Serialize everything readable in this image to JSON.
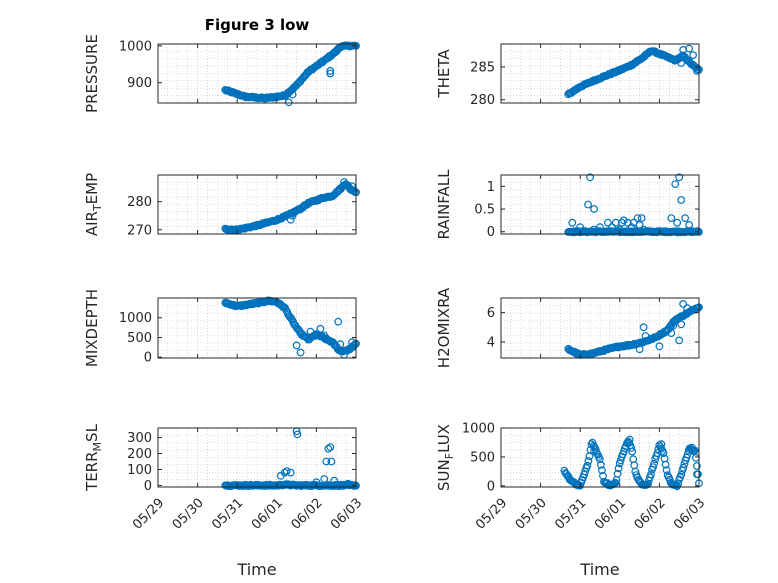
{
  "colors": {
    "marker": "#0072BD",
    "axis": "#262626",
    "grid": "#bfbfbf"
  },
  "chart_data": [
    {
      "type": "scatter",
      "title": "Figure 3 low",
      "ylabel": "PRESSURE",
      "ylabel_sub": "",
      "ylabel_suffix": "",
      "xlabel": "",
      "ylim": [
        845,
        1005
      ],
      "yticks": [
        900,
        1000
      ],
      "ytick_labels": [
        "900",
        "1000"
      ],
      "xlim": [
        0,
        5
      ],
      "grid": "on",
      "trend": [
        [
          1.7,
          880
        ],
        [
          2.2,
          862
        ],
        [
          2.7,
          858
        ],
        [
          3.0,
          862
        ],
        [
          3.2,
          865
        ],
        [
          3.5,
          893
        ],
        [
          3.8,
          930
        ],
        [
          4.2,
          960
        ],
        [
          4.5,
          985
        ],
        [
          4.6,
          998
        ],
        [
          4.8,
          1000
        ],
        [
          5.0,
          1000
        ]
      ],
      "extras": [
        [
          3.3,
          847
        ],
        [
          3.4,
          868
        ],
        [
          4.35,
          925
        ],
        [
          4.35,
          932
        ],
        [
          4.15,
          958
        ]
      ]
    },
    {
      "type": "scatter",
      "title": "",
      "ylabel": "THETA",
      "ylabel_sub": "",
      "ylabel_suffix": "",
      "xlabel": "",
      "ylim": [
        279.5,
        288.5
      ],
      "yticks": [
        280,
        285
      ],
      "ytick_labels": [
        "280",
        "285"
      ],
      "xlim": [
        0,
        5
      ],
      "grid": "on",
      "trend": [
        [
          1.7,
          280.8
        ],
        [
          2.0,
          282.0
        ],
        [
          2.5,
          283.3
        ],
        [
          3.0,
          284.5
        ],
        [
          3.3,
          285.3
        ],
        [
          3.6,
          286.5
        ],
        [
          3.8,
          287.5
        ],
        [
          4.0,
          287.0
        ],
        [
          4.2,
          286.5
        ],
        [
          4.4,
          286.0
        ],
        [
          4.6,
          286.7
        ],
        [
          4.8,
          285.5
        ],
        [
          5.0,
          284.5
        ]
      ],
      "extras": [
        [
          4.6,
          287.6
        ],
        [
          4.75,
          287.8
        ],
        [
          4.85,
          286.8
        ],
        [
          4.9,
          285.0
        ],
        [
          4.55,
          285.6
        ],
        [
          4.95,
          284.4
        ]
      ]
    },
    {
      "type": "scatter",
      "title": "",
      "ylabel": "AIR",
      "ylabel_sub": "T",
      "ylabel_suffix": "EMP",
      "xlabel": "",
      "ylim": [
        268.5,
        289.5
      ],
      "yticks": [
        270,
        280
      ],
      "ytick_labels": [
        "270",
        "280"
      ],
      "xlim": [
        0,
        5
      ],
      "grid": "on",
      "trend": [
        [
          1.7,
          270.3
        ],
        [
          2.0,
          270.0
        ],
        [
          2.5,
          271.5
        ],
        [
          3.0,
          273.5
        ],
        [
          3.3,
          275.3
        ],
        [
          3.6,
          277.5
        ],
        [
          3.8,
          279.5
        ],
        [
          4.0,
          280.5
        ],
        [
          4.2,
          281.5
        ],
        [
          4.4,
          282.0
        ],
        [
          4.6,
          284.5
        ],
        [
          4.75,
          286.5
        ],
        [
          4.85,
          284.5
        ],
        [
          5.0,
          283.5
        ]
      ],
      "extras": [
        [
          3.35,
          273.6
        ],
        [
          3.4,
          275.0
        ],
        [
          4.7,
          287.0
        ],
        [
          4.9,
          285.5
        ]
      ]
    },
    {
      "type": "scatter",
      "title": "",
      "ylabel": "RAINFALL",
      "ylabel_sub": "",
      "ylabel_suffix": "",
      "xlabel": "",
      "ylim": [
        -0.05,
        1.25
      ],
      "yticks": [
        0,
        0.5,
        1
      ],
      "ytick_labels": [
        "0",
        "0.5",
        "1"
      ],
      "xlim": [
        0,
        5
      ],
      "grid": "on",
      "trend": [
        [
          1.7,
          0
        ],
        [
          3.0,
          0
        ],
        [
          4.5,
          0
        ],
        [
          5.0,
          0
        ]
      ],
      "extras": [
        [
          1.8,
          0.2
        ],
        [
          2.0,
          0.1
        ],
        [
          2.2,
          0.6
        ],
        [
          2.25,
          1.2
        ],
        [
          2.35,
          0.5
        ],
        [
          2.35,
          0.05
        ],
        [
          2.5,
          0.1
        ],
        [
          2.7,
          0.2
        ],
        [
          2.8,
          0.1
        ],
        [
          2.9,
          0.2
        ],
        [
          3.0,
          0.05
        ],
        [
          3.05,
          0.2
        ],
        [
          3.1,
          0.25
        ],
        [
          3.2,
          0.2
        ],
        [
          3.3,
          0.1
        ],
        [
          3.35,
          0.2
        ],
        [
          3.45,
          0.3
        ],
        [
          3.5,
          0.15
        ],
        [
          3.55,
          0.3
        ],
        [
          3.6,
          0.05
        ],
        [
          4.3,
          0.3
        ],
        [
          4.4,
          1.05
        ],
        [
          4.45,
          0.2
        ],
        [
          4.5,
          1.2
        ],
        [
          4.55,
          0.7
        ],
        [
          4.65,
          0.3
        ],
        [
          4.75,
          0.15
        ]
      ]
    },
    {
      "type": "scatter",
      "title": "",
      "ylabel": "MIXDEPTH",
      "ylabel_sub": "",
      "ylabel_suffix": "",
      "xlabel": "",
      "ylim": [
        -20,
        1500
      ],
      "yticks": [
        0,
        500,
        1000
      ],
      "ytick_labels": [
        "0",
        "500",
        "1000"
      ],
      "xlim": [
        0,
        5
      ],
      "grid": "on",
      "trend": [
        [
          1.7,
          1380
        ],
        [
          2.0,
          1290
        ],
        [
          2.5,
          1370
        ],
        [
          2.8,
          1430
        ],
        [
          3.0,
          1400
        ],
        [
          3.2,
          1250
        ],
        [
          3.4,
          900
        ],
        [
          3.6,
          600
        ],
        [
          3.8,
          450
        ],
        [
          4.0,
          580
        ],
        [
          4.2,
          480
        ],
        [
          4.4,
          380
        ],
        [
          4.6,
          150
        ],
        [
          4.8,
          180
        ],
        [
          5.0,
          330
        ]
      ],
      "extras": [
        [
          3.5,
          300
        ],
        [
          3.6,
          120
        ],
        [
          3.85,
          650
        ],
        [
          4.1,
          720
        ],
        [
          4.2,
          550
        ],
        [
          4.55,
          900
        ],
        [
          4.6,
          330
        ],
        [
          4.7,
          60
        ],
        [
          4.9,
          380
        ]
      ]
    },
    {
      "type": "scatter",
      "title": "",
      "ylabel": "H2OMIXRA",
      "ylabel_sub": "",
      "ylabel_suffix": "",
      "xlabel": "",
      "ylim": [
        2.9,
        7.0
      ],
      "yticks": [
        4,
        6
      ],
      "ytick_labels": [
        "4",
        "6"
      ],
      "xlim": [
        0,
        5
      ],
      "grid": "on",
      "trend": [
        [
          1.7,
          3.5
        ],
        [
          2.0,
          3.1
        ],
        [
          2.3,
          3.2
        ],
        [
          2.7,
          3.5
        ],
        [
          3.0,
          3.7
        ],
        [
          3.3,
          3.8
        ],
        [
          3.6,
          4.0
        ],
        [
          3.9,
          4.3
        ],
        [
          4.2,
          4.8
        ],
        [
          4.4,
          5.5
        ],
        [
          4.6,
          5.8
        ],
        [
          4.8,
          6.1
        ],
        [
          5.0,
          6.4
        ]
      ],
      "extras": [
        [
          3.5,
          3.5
        ],
        [
          3.6,
          5.0
        ],
        [
          3.65,
          4.4
        ],
        [
          4.0,
          3.7
        ],
        [
          4.3,
          4.6
        ],
        [
          4.5,
          4.1
        ],
        [
          4.6,
          6.6
        ],
        [
          4.7,
          6.3
        ],
        [
          4.55,
          5.2
        ],
        [
          4.35,
          5.1
        ]
      ]
    },
    {
      "type": "scatter",
      "title": "",
      "ylabel": "TERR",
      "ylabel_sub": "M",
      "ylabel_suffix": "SL",
      "xlabel": "Time",
      "ylim": [
        -10,
        360
      ],
      "yticks": [
        0,
        100,
        200,
        300
      ],
      "ytick_labels": [
        "0",
        "100",
        "200",
        "300"
      ],
      "xlim": [
        0,
        5
      ],
      "xticks": [
        0,
        1,
        2,
        3,
        4,
        5
      ],
      "xtick_labels": [
        "05/29",
        "05/30",
        "05/31",
        "06/01",
        "06/02",
        "06/03"
      ],
      "grid": "on",
      "trend": [
        [
          1.7,
          0
        ],
        [
          3.0,
          0
        ],
        [
          3.2,
          5
        ],
        [
          3.5,
          0
        ],
        [
          4.5,
          0
        ],
        [
          5.0,
          0
        ]
      ],
      "extras": [
        [
          3.1,
          60
        ],
        [
          3.2,
          80
        ],
        [
          3.25,
          90
        ],
        [
          3.35,
          80
        ],
        [
          3.5,
          340
        ],
        [
          3.52,
          320
        ],
        [
          4.0,
          20
        ],
        [
          4.2,
          40
        ],
        [
          4.25,
          150
        ],
        [
          4.3,
          230
        ],
        [
          4.35,
          240
        ],
        [
          4.38,
          150
        ],
        [
          4.45,
          30
        ],
        [
          4.8,
          10
        ]
      ]
    },
    {
      "type": "scatter",
      "title": "",
      "ylabel": "SUN",
      "ylabel_sub": "F",
      "ylabel_suffix": "LUX",
      "xlabel": "Time",
      "ylim": [
        -20,
        1000
      ],
      "yticks": [
        0,
        500,
        1000
      ],
      "ytick_labels": [
        "0",
        "500",
        "1000"
      ],
      "xlim": [
        0,
        5
      ],
      "xticks": [
        0,
        1,
        2,
        3,
        4,
        5
      ],
      "xtick_labels": [
        "05/29",
        "05/30",
        "05/31",
        "06/01",
        "06/02",
        "06/03"
      ],
      "grid": "on",
      "trend": [
        [
          1.6,
          260
        ],
        [
          1.75,
          100
        ],
        [
          1.9,
          20
        ],
        [
          2.0,
          0
        ],
        [
          2.2,
          400
        ],
        [
          2.3,
          760
        ],
        [
          2.5,
          450
        ],
        [
          2.6,
          80
        ],
        [
          2.75,
          0
        ],
        [
          2.9,
          50
        ],
        [
          3.0,
          400
        ],
        [
          3.2,
          780
        ],
        [
          3.3,
          650
        ],
        [
          3.4,
          200
        ],
        [
          3.55,
          20
        ],
        [
          3.7,
          10
        ],
        [
          3.85,
          350
        ],
        [
          4.0,
          700
        ],
        [
          4.1,
          580
        ],
        [
          4.2,
          200
        ],
        [
          4.3,
          40
        ],
        [
          4.45,
          0
        ],
        [
          4.6,
          300
        ],
        [
          4.75,
          640
        ],
        [
          4.9,
          600
        ],
        [
          5.0,
          50
        ]
      ],
      "extras": [
        [
          2.35,
          600
        ],
        [
          3.25,
          800
        ],
        [
          4.05,
          720
        ],
        [
          4.82,
          660
        ],
        [
          4.95,
          200
        ]
      ]
    }
  ]
}
